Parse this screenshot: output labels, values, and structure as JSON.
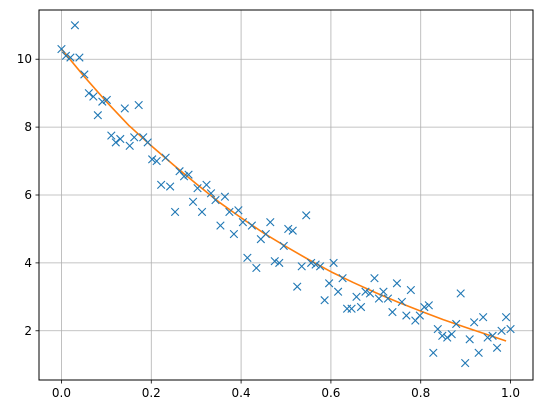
{
  "chart_data": {
    "type": "scatter",
    "title": "",
    "xlabel": "",
    "ylabel": "",
    "xlim": [
      -0.05,
      1.05
    ],
    "ylim": [
      0.55,
      11.45
    ],
    "grid": true,
    "x_ticks": [
      0.0,
      0.2,
      0.4,
      0.6,
      0.8,
      1.0
    ],
    "x_tick_labels": [
      "0.0",
      "0.2",
      "0.4",
      "0.6",
      "0.8",
      "1.0"
    ],
    "y_ticks": [
      2,
      4,
      6,
      8,
      10
    ],
    "y_tick_labels": [
      "2",
      "4",
      "6",
      "8",
      "10"
    ],
    "colors": {
      "points": "#1f77b4",
      "line": "#ff7f0e",
      "grid": "#b0b0b0"
    },
    "series": [
      {
        "type": "scatter",
        "marker": "x",
        "x": [
          0.0,
          0.01,
          0.02,
          0.03,
          0.04,
          0.051,
          0.061,
          0.071,
          0.081,
          0.091,
          0.101,
          0.111,
          0.121,
          0.131,
          0.141,
          0.152,
          0.162,
          0.172,
          0.182,
          0.192,
          0.202,
          0.212,
          0.222,
          0.232,
          0.242,
          0.253,
          0.263,
          0.273,
          0.283,
          0.293,
          0.303,
          0.313,
          0.323,
          0.333,
          0.343,
          0.354,
          0.364,
          0.374,
          0.384,
          0.394,
          0.404,
          0.414,
          0.424,
          0.434,
          0.444,
          0.455,
          0.465,
          0.475,
          0.485,
          0.495,
          0.505,
          0.515,
          0.525,
          0.535,
          0.545,
          0.556,
          0.566,
          0.576,
          0.586,
          0.596,
          0.606,
          0.616,
          0.626,
          0.636,
          0.646,
          0.657,
          0.667,
          0.677,
          0.687,
          0.697,
          0.707,
          0.717,
          0.727,
          0.737,
          0.747,
          0.758,
          0.768,
          0.778,
          0.788,
          0.798,
          0.808,
          0.818,
          0.828,
          0.838,
          0.848,
          0.859,
          0.869,
          0.879,
          0.889,
          0.899,
          0.909,
          0.919,
          0.929,
          0.939,
          0.949,
          0.96,
          0.97,
          0.98,
          0.99,
          1.0
        ],
        "y": [
          10.3,
          10.1,
          10.05,
          11.0,
          10.05,
          9.55,
          9.0,
          8.9,
          8.35,
          8.75,
          8.8,
          7.75,
          7.55,
          7.65,
          8.55,
          7.45,
          7.7,
          8.65,
          7.7,
          7.55,
          7.05,
          7.0,
          6.3,
          7.1,
          6.25,
          5.5,
          6.7,
          6.55,
          6.6,
          5.8,
          6.2,
          5.5,
          6.3,
          6.05,
          5.85,
          5.1,
          5.95,
          5.5,
          4.85,
          5.55,
          5.2,
          4.15,
          5.1,
          3.85,
          4.7,
          4.85,
          5.2,
          4.05,
          4.0,
          4.5,
          5.0,
          4.95,
          3.3,
          3.9,
          5.4,
          4.0,
          3.95,
          3.9,
          2.9,
          3.4,
          4.0,
          3.15,
          3.55,
          2.65,
          2.65,
          3.0,
          2.7,
          3.15,
          3.1,
          3.55,
          2.95,
          3.15,
          2.95,
          2.55,
          3.4,
          2.85,
          2.45,
          3.2,
          2.3,
          2.45,
          2.7,
          2.75,
          1.35,
          2.05,
          1.85,
          1.8,
          1.9,
          2.2,
          3.1,
          1.05,
          1.75,
          2.25,
          1.35,
          2.4,
          1.8,
          1.85,
          1.5,
          2.0,
          2.4,
          2.05
        ]
      },
      {
        "type": "line",
        "x": [
          0.0,
          0.05,
          0.1,
          0.15,
          0.2,
          0.25,
          0.3,
          0.35,
          0.4,
          0.45,
          0.5,
          0.55,
          0.6,
          0.65,
          0.7,
          0.75,
          0.8,
          0.85,
          0.9,
          0.95,
          0.99
        ],
        "y": [
          10.3,
          9.5,
          8.75,
          8.05,
          7.45,
          6.88,
          6.33,
          5.8,
          5.33,
          4.88,
          4.48,
          4.1,
          3.74,
          3.42,
          3.12,
          2.84,
          2.58,
          2.33,
          2.1,
          1.88,
          1.7
        ]
      }
    ]
  }
}
